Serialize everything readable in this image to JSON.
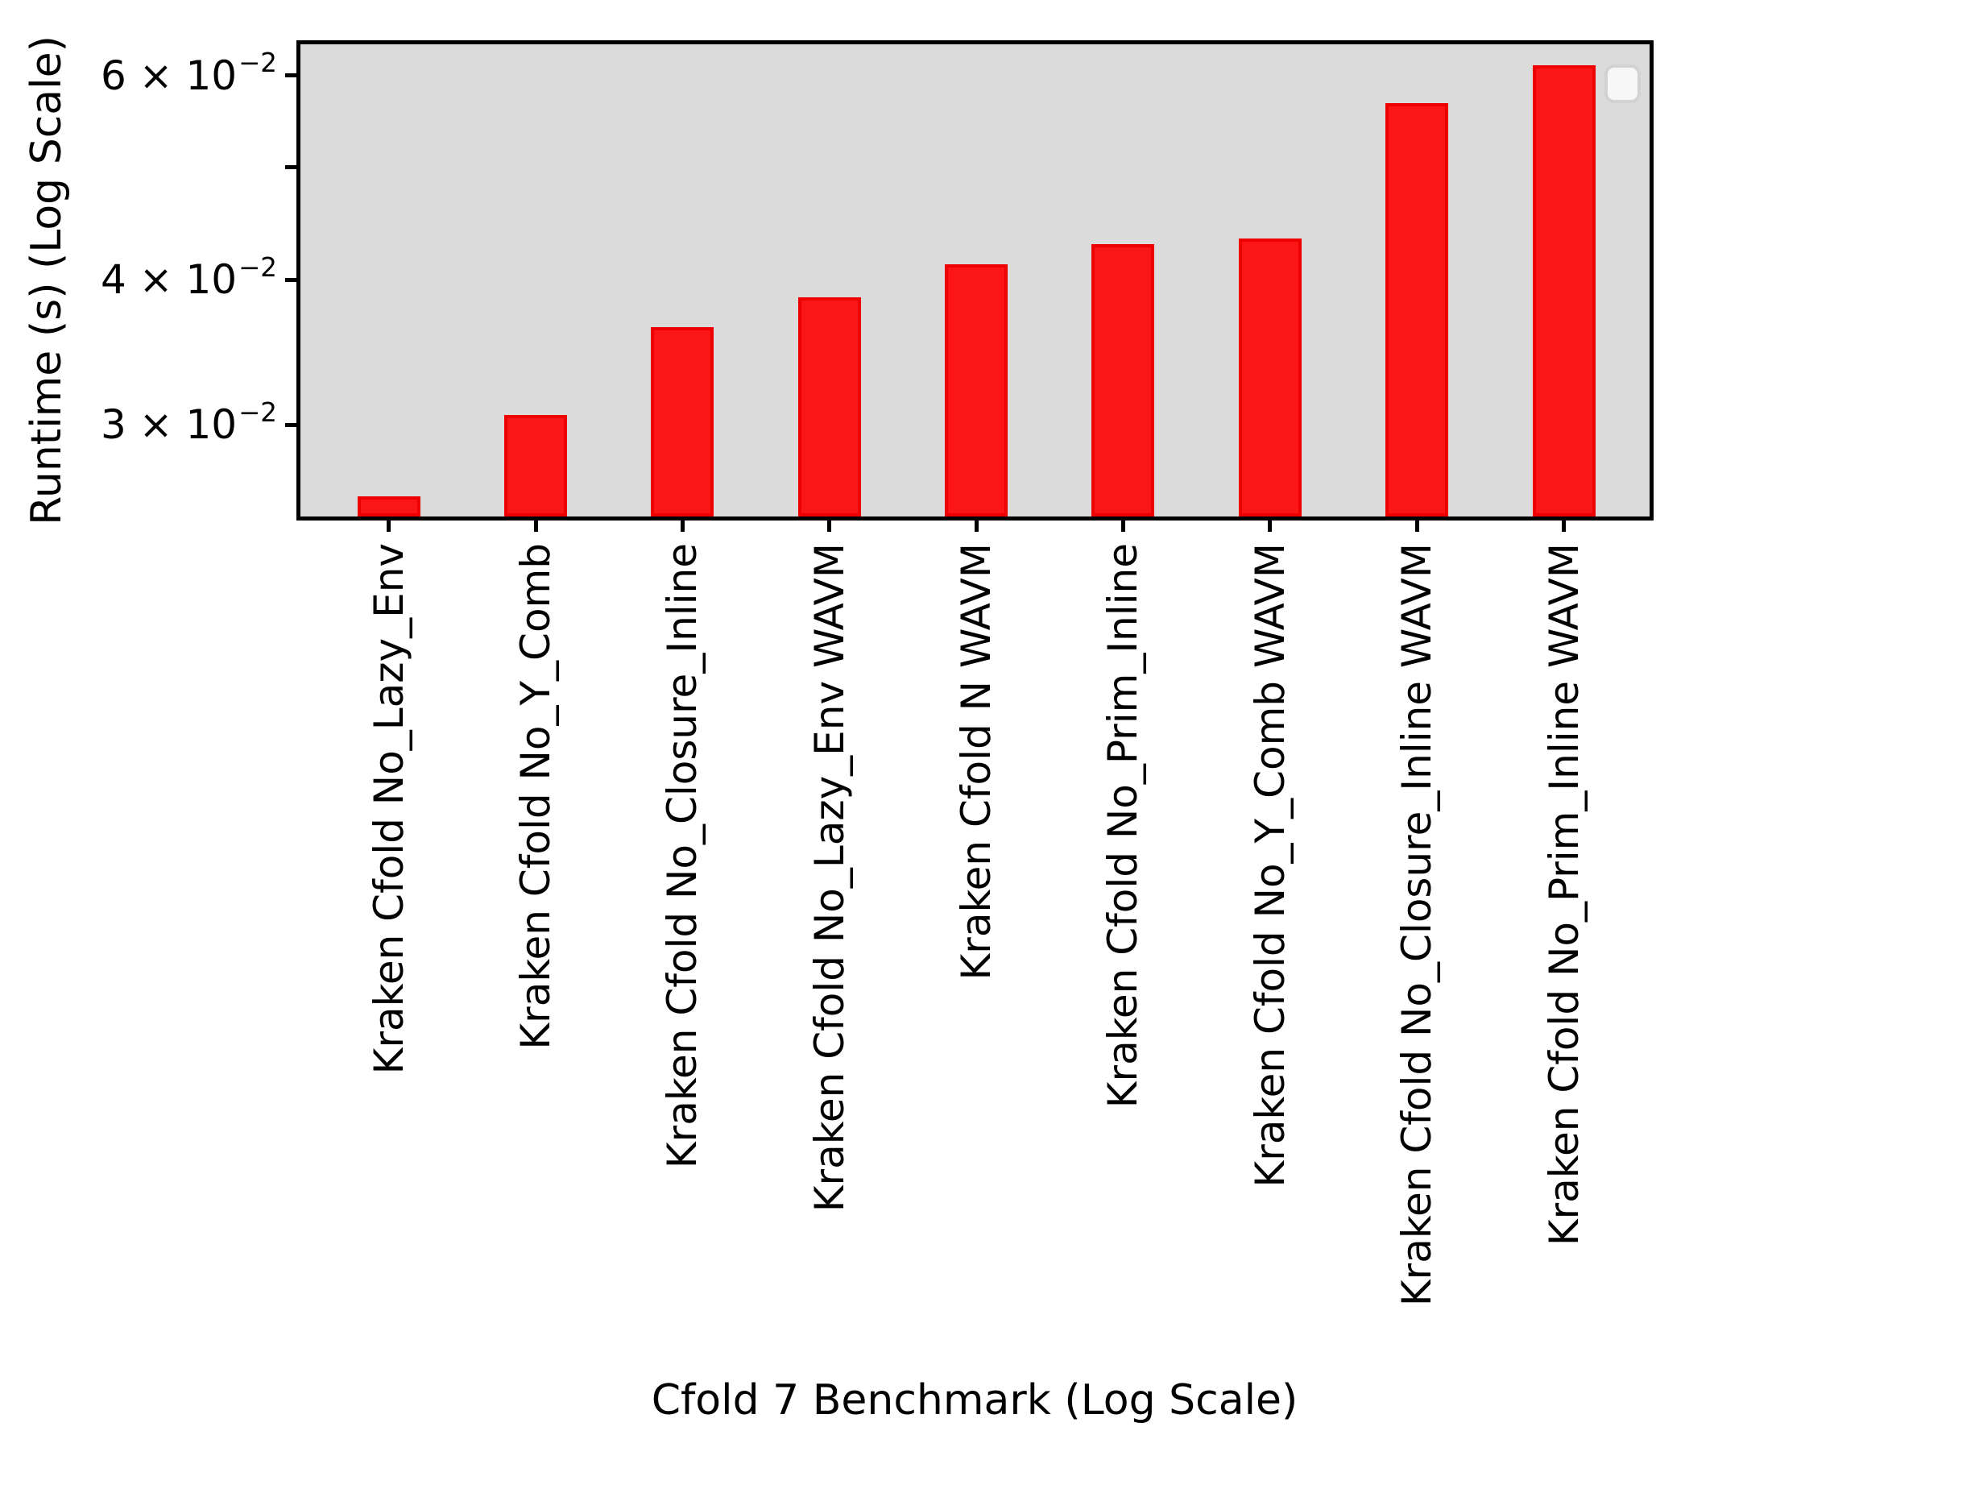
{
  "figure": {
    "y_axis": {
      "label": "Runtime (s) (Log Scale)",
      "scale": "log",
      "ticks": [
        {
          "value": 0.06,
          "base": "6 × 10",
          "exponent": "−2"
        },
        {
          "value": 0.05,
          "base": null,
          "exponent": null
        },
        {
          "value": 0.04,
          "base": "4 × 10",
          "exponent": "−2"
        },
        {
          "value": 0.03,
          "base": "3 × 10",
          "exponent": "−2"
        }
      ]
    },
    "x_axis": {
      "label": "Cfold 7 Benchmark (Log Scale)"
    },
    "legend": {
      "entries": [],
      "visible": true
    }
  },
  "chart_data": {
    "type": "bar",
    "title": "",
    "xlabel": "Cfold 7 Benchmark (Log Scale)",
    "ylabel": "Runtime (s) (Log Scale)",
    "yscale": "log",
    "ylim": [
      0.025,
      0.064
    ],
    "grid": false,
    "legend_position": "upper right",
    "legend_entries": [],
    "categories": [
      "Kraken Cfold No_Lazy_Env",
      "Kraken Cfold No_Y_Comb",
      "Kraken Cfold No_Closure_Inline",
      "Kraken Cfold No_Lazy_Env WAVM",
      "Kraken Cfold N WAVM",
      "Kraken Cfold No_Prim_Inline",
      "Kraken Cfold No_Y_Comb WAVM",
      "Kraken Cfold No_Closure_Inline WAVM",
      "Kraken Cfold No_Prim_Inline WAVM"
    ],
    "values": [
      0.026,
      0.0306,
      0.0364,
      0.0386,
      0.0412,
      0.0429,
      0.0434,
      0.0568,
      0.0612
    ],
    "bar_color": "#fa1616",
    "bar_edge_color": "#ee0000",
    "plot_background": "#dbdbdb",
    "figure_background": "#ffffff",
    "spine_color": "#000000"
  }
}
